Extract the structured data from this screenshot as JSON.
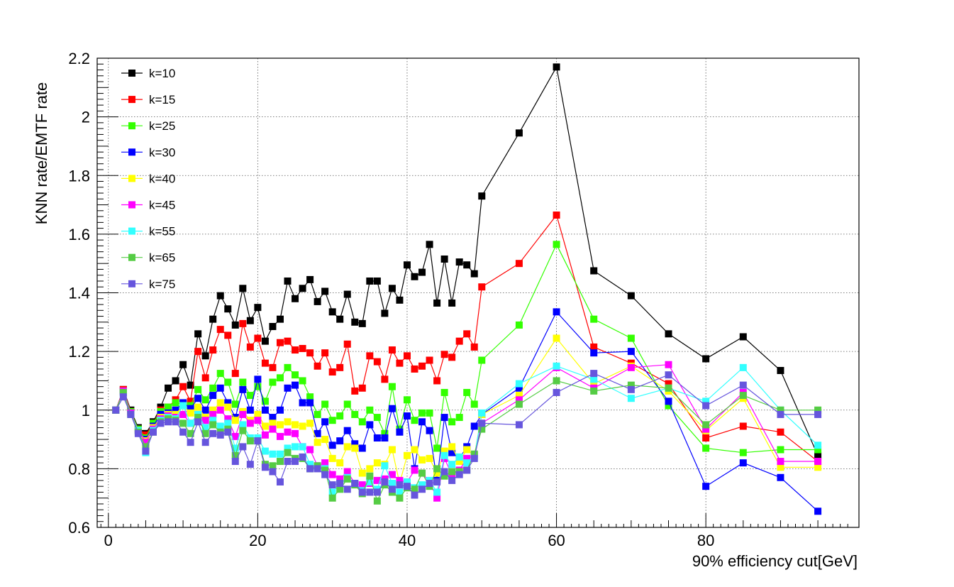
{
  "chart_data": {
    "type": "line",
    "xlabel": "90% efficiency cut[GeV]",
    "ylabel": "KNN rate/EMTF rate",
    "xlim": [
      -1.5,
      100.5
    ],
    "ylim": [
      0.6,
      2.2
    ],
    "x_ticks": [
      0,
      20,
      40,
      60,
      80
    ],
    "x_tick_labels": [
      "0",
      "20",
      "40",
      "60",
      "80"
    ],
    "y_ticks": [
      0.6,
      0.8,
      1.0,
      1.2,
      1.4,
      1.6,
      1.8,
      2.0,
      2.2
    ],
    "y_tick_labels": [
      "0.6",
      "0.8",
      "1",
      "1.2",
      "1.4",
      "1.6",
      "1.8",
      "2",
      "2.2"
    ],
    "grid": true,
    "legend_position": "top-left",
    "x": [
      1,
      2,
      3,
      4,
      5,
      6,
      7,
      8,
      9,
      10,
      11,
      12,
      13,
      14,
      15,
      16,
      17,
      18,
      19,
      20,
      21,
      22,
      23,
      24,
      25,
      26,
      27,
      28,
      29,
      30,
      31,
      32,
      33,
      34,
      35,
      36,
      37,
      38,
      39,
      40,
      41,
      42,
      43,
      44,
      45,
      46,
      47,
      48,
      49,
      50,
      55,
      60,
      65,
      70,
      75,
      80,
      85,
      90,
      95
    ],
    "series": [
      {
        "name": "k=10",
        "color": "#000000",
        "values": [
          1.0,
          1.07,
          1.0,
          0.94,
          0.92,
          0.96,
          1.01,
          1.075,
          1.1,
          1.155,
          1.085,
          1.26,
          1.185,
          1.31,
          1.39,
          1.345,
          1.29,
          1.415,
          1.305,
          1.35,
          1.235,
          1.285,
          1.31,
          1.44,
          1.38,
          1.415,
          1.445,
          1.37,
          1.405,
          1.335,
          1.31,
          1.395,
          1.3,
          1.295,
          1.44,
          1.44,
          1.33,
          1.415,
          1.375,
          1.495,
          1.455,
          1.47,
          1.565,
          1.365,
          1.515,
          1.365,
          1.505,
          1.495,
          1.465,
          1.73,
          1.945,
          2.17,
          1.475,
          1.39,
          1.26,
          1.175,
          1.25,
          1.135,
          0.845
        ]
      },
      {
        "name": "k=15",
        "color": "#ff0000",
        "values": [
          1.0,
          1.07,
          0.995,
          0.935,
          0.915,
          0.955,
          1.0,
          1.01,
          1.035,
          1.08,
          1.03,
          1.2,
          1.11,
          1.205,
          1.275,
          1.255,
          1.125,
          1.295,
          1.215,
          1.245,
          1.16,
          1.145,
          1.23,
          1.235,
          1.205,
          1.21,
          1.195,
          1.15,
          1.195,
          1.13,
          1.145,
          1.225,
          1.065,
          1.075,
          1.185,
          1.165,
          1.105,
          1.205,
          1.16,
          1.185,
          1.14,
          1.15,
          1.17,
          1.1,
          1.19,
          1.18,
          1.235,
          1.26,
          1.215,
          1.42,
          1.5,
          1.665,
          1.215,
          1.16,
          1.09,
          0.905,
          0.945,
          0.925,
          0.825
        ]
      },
      {
        "name": "k=25",
        "color": "#33ff00",
        "values": [
          1.0,
          1.065,
          0.995,
          0.935,
          0.905,
          0.955,
          0.995,
          1.01,
          1.025,
          1.02,
          1.015,
          1.07,
          1.035,
          1.075,
          1.125,
          1.095,
          1.02,
          1.095,
          1.05,
          1.08,
          1.03,
          1.095,
          1.11,
          1.145,
          1.12,
          1.1,
          1.045,
          0.985,
          1.02,
          0.965,
          0.98,
          1.02,
          0.985,
          0.96,
          1.0,
          0.975,
          0.92,
          1.08,
          0.935,
          1.035,
          0.965,
          0.99,
          0.99,
          0.87,
          1.06,
          0.96,
          0.975,
          1.06,
          1.02,
          1.17,
          1.29,
          1.565,
          1.31,
          1.245,
          1.015,
          0.87,
          0.855,
          0.865,
          0.865
        ]
      },
      {
        "name": "k=30",
        "color": "#0000ff",
        "values": [
          1.0,
          1.065,
          0.99,
          0.93,
          0.9,
          0.945,
          0.985,
          0.99,
          1.0,
          1.025,
          1.005,
          1.04,
          1.0,
          1.05,
          1.075,
          1.025,
          0.975,
          1.07,
          1.0,
          1.105,
          1.0,
          0.975,
          1.0,
          1.075,
          1.085,
          1.025,
          1.025,
          0.92,
          0.96,
          0.88,
          0.895,
          0.93,
          0.885,
          0.87,
          0.95,
          0.905,
          0.905,
          1.005,
          0.925,
          0.98,
          0.8,
          0.96,
          0.93,
          0.76,
          0.975,
          0.855,
          0.835,
          0.875,
          0.945,
          0.985,
          1.075,
          1.335,
          1.195,
          1.2,
          1.03,
          0.74,
          0.82,
          0.77,
          0.655
        ]
      },
      {
        "name": "k=40",
        "color": "#ffff00",
        "values": [
          1.0,
          1.065,
          0.99,
          0.93,
          0.895,
          0.94,
          0.975,
          0.985,
          0.985,
          1.015,
          0.99,
          1.01,
          0.975,
          1.0,
          1.025,
          1.01,
          0.965,
          0.995,
          0.965,
          0.985,
          0.945,
          0.955,
          0.95,
          0.96,
          0.95,
          0.945,
          0.955,
          0.89,
          0.9,
          0.835,
          0.82,
          0.875,
          0.87,
          0.785,
          0.8,
          0.82,
          0.815,
          0.865,
          0.75,
          0.845,
          0.865,
          0.83,
          0.835,
          0.785,
          0.86,
          0.875,
          0.825,
          0.865,
          0.845,
          0.985,
          1.05,
          1.245,
          1.09,
          1.15,
          1.065,
          0.93,
          1.04,
          0.805,
          0.805
        ]
      },
      {
        "name": "k=45",
        "color": "#ff00ff",
        "values": [
          1.0,
          1.065,
          0.99,
          0.93,
          0.89,
          0.935,
          0.97,
          0.98,
          0.975,
          0.985,
          0.955,
          0.985,
          0.965,
          0.985,
          1.0,
          0.97,
          0.91,
          0.985,
          0.955,
          0.965,
          0.915,
          0.935,
          0.91,
          0.925,
          0.92,
          0.875,
          0.865,
          0.81,
          0.82,
          0.78,
          0.765,
          0.79,
          0.75,
          0.745,
          0.75,
          0.76,
          0.765,
          0.78,
          0.76,
          0.755,
          0.795,
          0.785,
          0.755,
          0.7,
          0.835,
          0.78,
          0.795,
          0.835,
          0.845,
          0.955,
          1.035,
          1.145,
          1.075,
          1.145,
          1.155,
          0.935,
          1.06,
          0.825,
          0.825
        ]
      },
      {
        "name": "k=55",
        "color": "#33ffff",
        "values": [
          1.0,
          1.06,
          0.985,
          0.93,
          0.855,
          0.93,
          0.965,
          0.975,
          0.97,
          1.015,
          0.955,
          0.985,
          0.94,
          0.965,
          0.945,
          0.955,
          0.87,
          0.95,
          0.905,
          0.905,
          0.86,
          0.85,
          0.85,
          0.87,
          0.875,
          0.875,
          0.815,
          0.805,
          0.8,
          0.72,
          0.745,
          0.77,
          0.75,
          0.725,
          0.755,
          0.73,
          0.81,
          0.75,
          0.72,
          0.755,
          0.735,
          0.745,
          0.76,
          0.72,
          0.845,
          0.815,
          0.84,
          0.82,
          0.84,
          0.99,
          1.09,
          1.15,
          1.105,
          1.04,
          1.075,
          1.03,
          1.145,
          1.0,
          0.88
        ]
      },
      {
        "name": "k=65",
        "color": "#55cc44",
        "values": [
          1.0,
          1.06,
          0.985,
          0.925,
          0.875,
          0.925,
          0.96,
          0.97,
          0.965,
          0.955,
          0.92,
          0.975,
          0.92,
          0.95,
          0.925,
          0.935,
          0.845,
          0.93,
          0.895,
          0.895,
          0.815,
          0.81,
          0.825,
          0.855,
          0.835,
          0.835,
          0.8,
          0.81,
          0.795,
          0.7,
          0.73,
          0.765,
          0.745,
          0.715,
          0.775,
          0.69,
          0.745,
          0.72,
          0.7,
          0.735,
          0.73,
          0.785,
          0.74,
          0.8,
          0.775,
          0.79,
          0.79,
          0.795,
          0.85,
          0.935,
          1.02,
          1.1,
          1.065,
          1.085,
          1.075,
          0.95,
          1.05,
          1.0,
          1.0
        ]
      },
      {
        "name": "k=75",
        "color": "#6655dd",
        "values": [
          1.0,
          1.045,
          0.985,
          0.92,
          0.86,
          0.925,
          0.955,
          0.96,
          0.96,
          0.925,
          0.89,
          0.96,
          0.89,
          0.92,
          0.915,
          0.925,
          0.825,
          0.875,
          0.815,
          0.895,
          0.805,
          0.79,
          0.755,
          0.825,
          0.825,
          0.84,
          0.8,
          0.8,
          0.78,
          0.745,
          0.75,
          0.73,
          0.75,
          0.72,
          0.72,
          0.72,
          0.755,
          0.73,
          0.745,
          0.74,
          0.71,
          0.73,
          0.75,
          0.755,
          0.79,
          0.76,
          0.78,
          0.795,
          0.835,
          0.955,
          0.95,
          1.06,
          1.125,
          1.07,
          1.12,
          1.015,
          1.085,
          0.985,
          0.985
        ]
      }
    ]
  }
}
